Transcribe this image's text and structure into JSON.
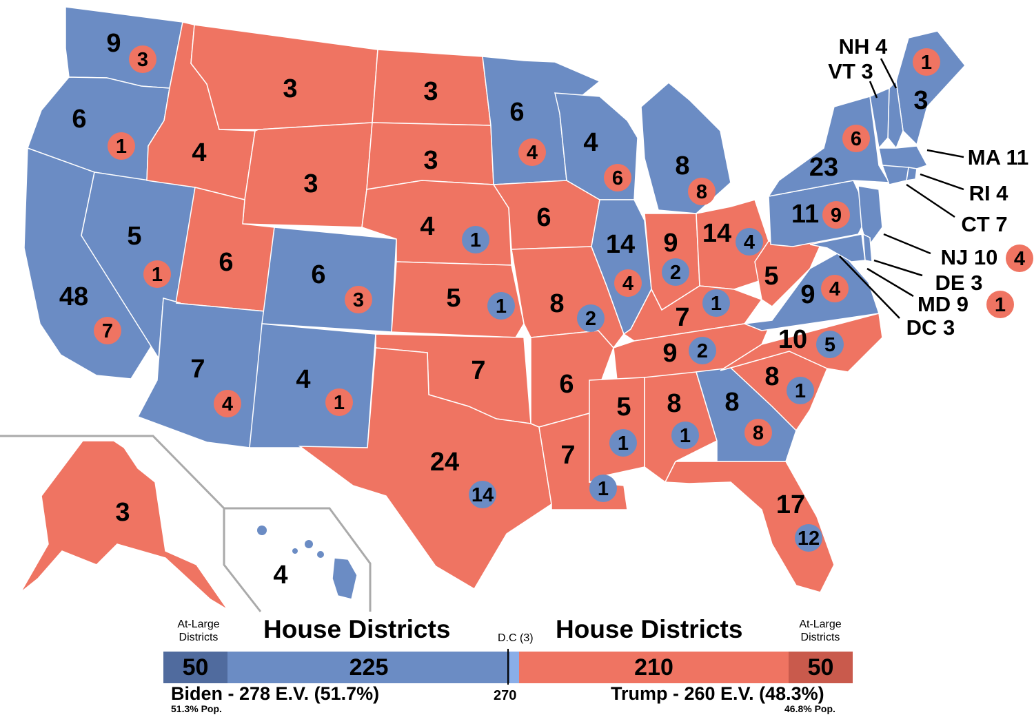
{
  "colors": {
    "dem": "#6B8CC4",
    "rep": "#EF7462",
    "dem_atlarge": "#506B9E",
    "rep_atlarge": "#C95A4C",
    "border": "#ffffff",
    "inset_line": "#aaaaaa"
  },
  "states": [
    {
      "id": "WA",
      "party": "dem",
      "ev": "9",
      "district": "3",
      "district_party": "rep"
    },
    {
      "id": "OR",
      "party": "dem",
      "ev": "6",
      "district": "1",
      "district_party": "rep"
    },
    {
      "id": "CA",
      "party": "dem",
      "ev": "48",
      "district": "7",
      "district_party": "rep"
    },
    {
      "id": "NV",
      "party": "dem",
      "ev": "5",
      "district": "1",
      "district_party": "rep"
    },
    {
      "id": "ID",
      "party": "rep",
      "ev": "4"
    },
    {
      "id": "MT",
      "party": "rep",
      "ev": "3"
    },
    {
      "id": "WY",
      "party": "rep",
      "ev": "3"
    },
    {
      "id": "UT",
      "party": "rep",
      "ev": "6"
    },
    {
      "id": "AZ",
      "party": "dem",
      "ev": "7",
      "district": "4",
      "district_party": "rep"
    },
    {
      "id": "CO",
      "party": "dem",
      "ev": "6",
      "district": "3",
      "district_party": "rep"
    },
    {
      "id": "NM",
      "party": "dem",
      "ev": "4",
      "district": "1",
      "district_party": "rep"
    },
    {
      "id": "ND",
      "party": "rep",
      "ev": "3"
    },
    {
      "id": "SD",
      "party": "rep",
      "ev": "3"
    },
    {
      "id": "NE",
      "party": "rep",
      "ev": "4",
      "district": "1",
      "district_party": "dem"
    },
    {
      "id": "KS",
      "party": "rep",
      "ev": "5",
      "district": "1",
      "district_party": "dem"
    },
    {
      "id": "OK",
      "party": "rep",
      "ev": "7"
    },
    {
      "id": "TX",
      "party": "rep",
      "ev": "24",
      "district": "14",
      "district_party": "dem"
    },
    {
      "id": "MN",
      "party": "dem",
      "ev": "6",
      "district": "4",
      "district_party": "rep"
    },
    {
      "id": "IA",
      "party": "rep",
      "ev": "6"
    },
    {
      "id": "MO",
      "party": "rep",
      "ev": "8",
      "district": "2",
      "district_party": "dem"
    },
    {
      "id": "AR",
      "party": "rep",
      "ev": "6"
    },
    {
      "id": "LA",
      "party": "rep",
      "ev": "7",
      "district": "1",
      "district_party": "dem"
    },
    {
      "id": "WI",
      "party": "dem",
      "ev": "4",
      "district": "6",
      "district_party": "rep"
    },
    {
      "id": "IL",
      "party": "dem",
      "ev": "14",
      "district": "4",
      "district_party": "rep"
    },
    {
      "id": "MI",
      "party": "dem",
      "ev": "8",
      "district": "8",
      "district_party": "rep"
    },
    {
      "id": "IN",
      "party": "rep",
      "ev": "9",
      "district": "2",
      "district_party": "dem"
    },
    {
      "id": "OH",
      "party": "rep",
      "ev": "14",
      "district": "4",
      "district_party": "dem"
    },
    {
      "id": "KY",
      "party": "rep",
      "ev": "7",
      "district": "1",
      "district_party": "dem"
    },
    {
      "id": "TN",
      "party": "rep",
      "ev": "9",
      "district": "2",
      "district_party": "dem"
    },
    {
      "id": "MS",
      "party": "rep",
      "ev": "5",
      "district": "1",
      "district_party": "dem"
    },
    {
      "id": "AL",
      "party": "rep",
      "ev": "8",
      "district": "1",
      "district_party": "dem"
    },
    {
      "id": "GA",
      "party": "dem",
      "ev": "8",
      "district": "8",
      "district_party": "rep"
    },
    {
      "id": "FL",
      "party": "rep",
      "ev": "17",
      "district": "12",
      "district_party": "dem"
    },
    {
      "id": "SC",
      "party": "rep",
      "ev": "8",
      "district": "1",
      "district_party": "dem"
    },
    {
      "id": "NC",
      "party": "rep",
      "ev": "10",
      "district": "5",
      "district_party": "dem"
    },
    {
      "id": "VA",
      "party": "dem",
      "ev": "9",
      "district": "4",
      "district_party": "rep"
    },
    {
      "id": "WV",
      "party": "rep",
      "ev": "5"
    },
    {
      "id": "PA",
      "party": "dem",
      "ev": "11",
      "district": "9",
      "district_party": "rep"
    },
    {
      "id": "NY",
      "party": "dem",
      "ev": "23",
      "district": "6",
      "district_party": "rep"
    },
    {
      "id": "ME",
      "party": "dem",
      "ev": "3",
      "district": "1",
      "district_party": "rep"
    },
    {
      "id": "AK",
      "party": "rep",
      "ev": "3"
    },
    {
      "id": "HI",
      "party": "dem",
      "ev": "4"
    }
  ],
  "small_states": [
    {
      "id": "NH",
      "label": "NH 4"
    },
    {
      "id": "VT",
      "label": "VT 3"
    },
    {
      "id": "MA",
      "label": "MA 11"
    },
    {
      "id": "RI",
      "label": "RI 4"
    },
    {
      "id": "CT",
      "label": "CT 7"
    },
    {
      "id": "NJ",
      "label": "NJ 10",
      "district": "4",
      "district_party": "rep"
    },
    {
      "id": "DE",
      "label": "DE 3"
    },
    {
      "id": "MD",
      "label": "MD 9",
      "district": "1",
      "district_party": "rep"
    },
    {
      "id": "DC",
      "label": "DC 3"
    }
  ],
  "tally": {
    "left_atlarge_label": "At-Large\nDistricts",
    "left_heading": "House Districts",
    "dc_label": "D.C (3)",
    "right_heading": "House Districts",
    "right_atlarge_label": "At-Large\nDistricts",
    "dem_atlarge": "50",
    "dem_house": "225",
    "rep_house": "210",
    "rep_atlarge": "50",
    "dem_summary": "Biden - 278 E.V. (51.7%)",
    "dem_pop": "51.3% Pop.",
    "threshold": "270",
    "rep_summary": "Trump - 260 E.V. (48.3%)",
    "rep_pop": "46.8% Pop."
  }
}
